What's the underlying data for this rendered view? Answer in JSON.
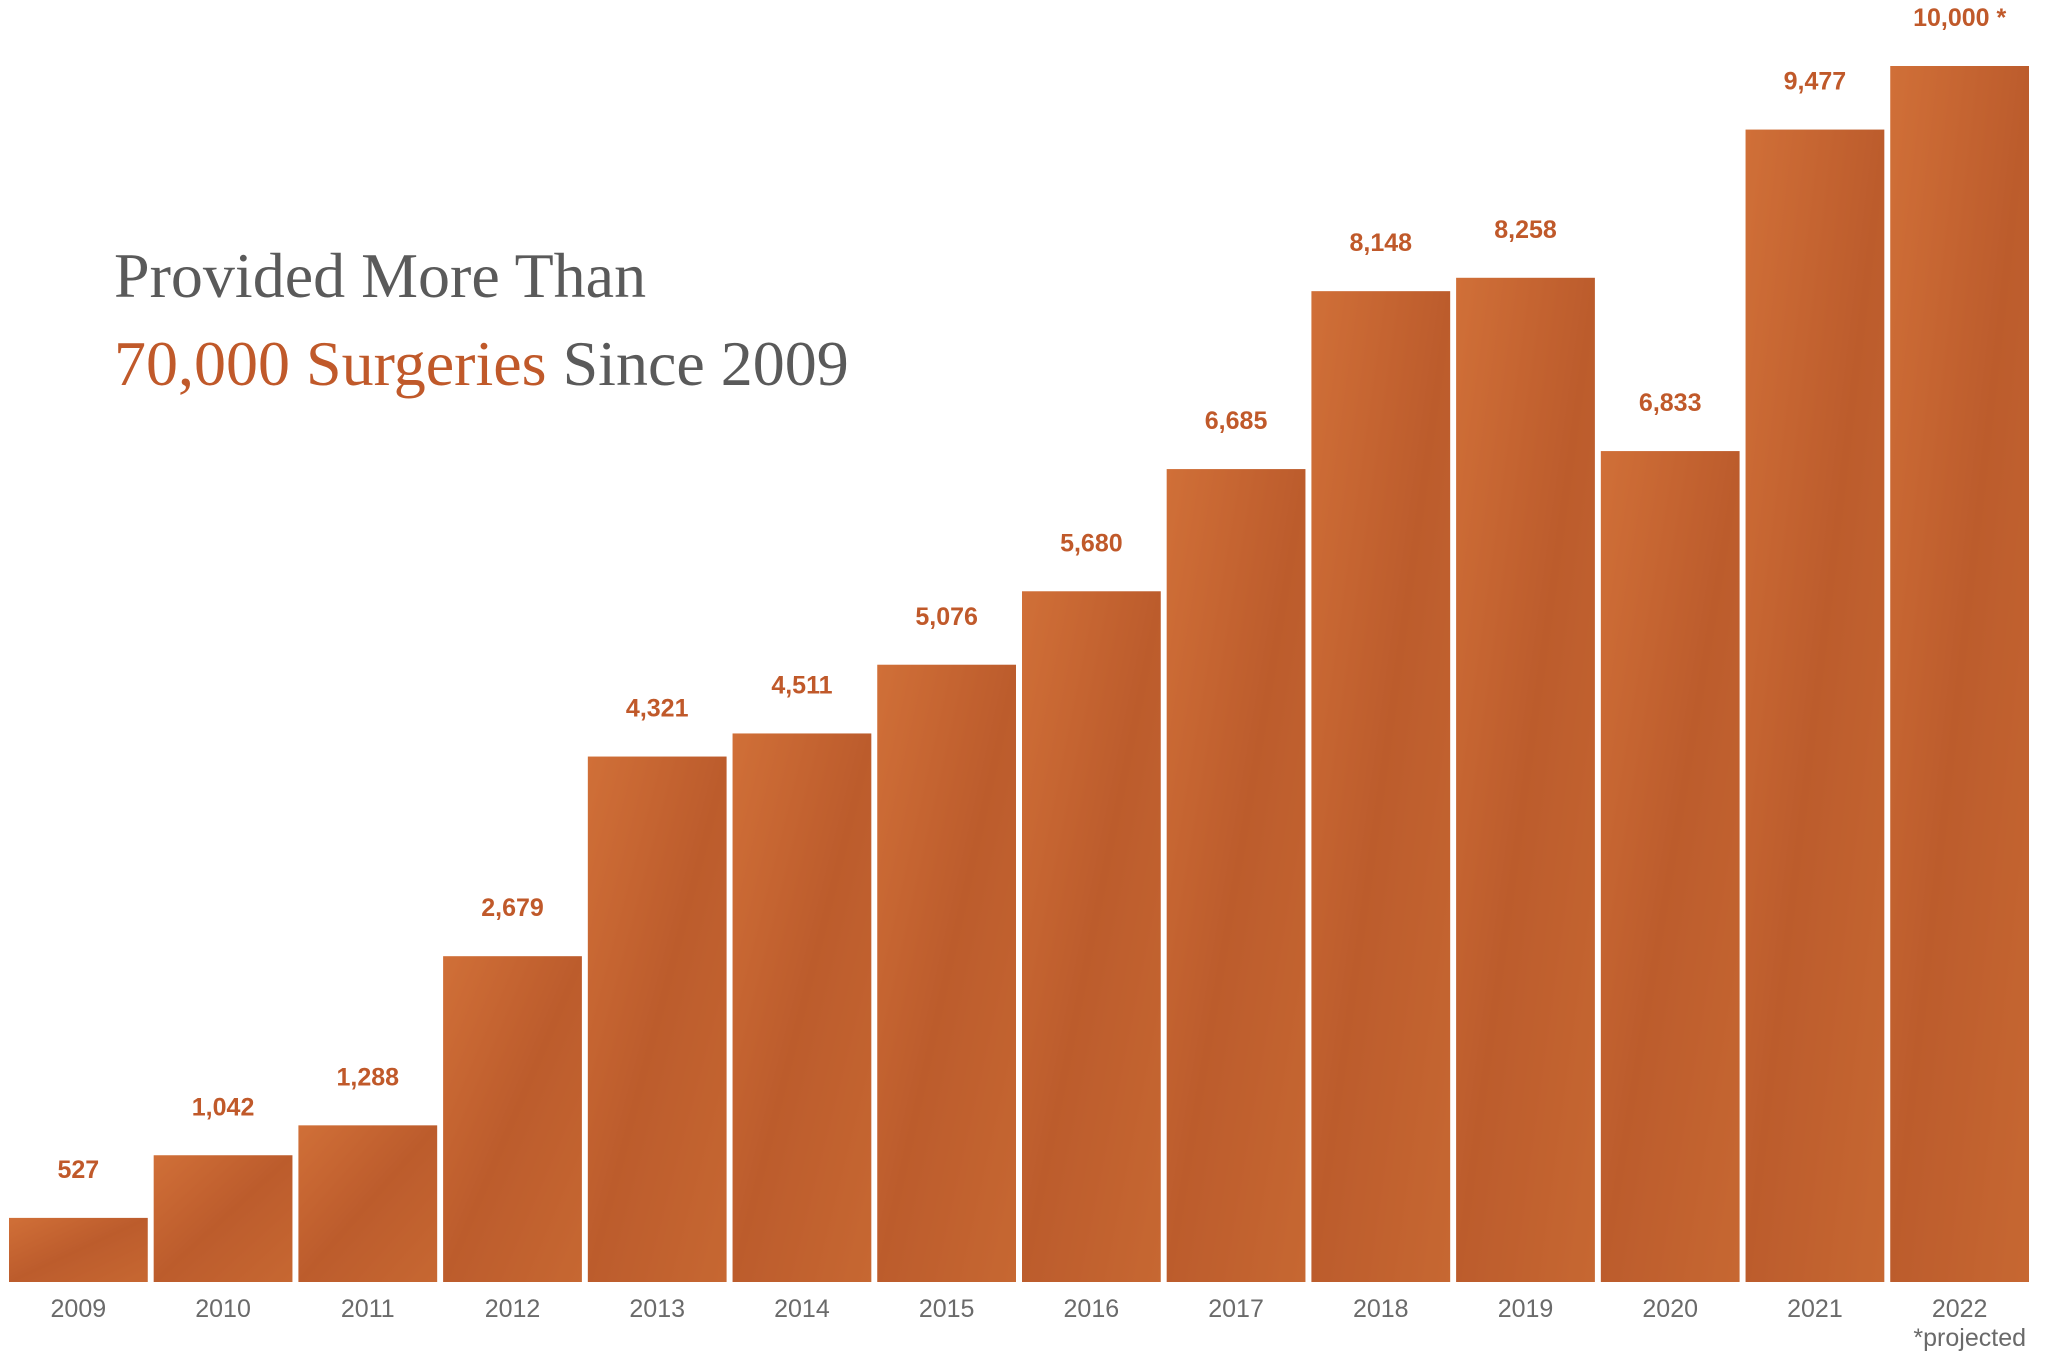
{
  "chart_data": {
    "type": "bar",
    "title": "Provided More Than",
    "subtitle_highlight": "70,000 Surgeries",
    "subtitle_rest": "Since 2009",
    "categories": [
      "2009",
      "2010",
      "2011",
      "2012",
      "2013",
      "2014",
      "2015",
      "2016",
      "2017",
      "2018",
      "2019",
      "2020",
      "2021",
      "2022"
    ],
    "values": [
      527,
      1042,
      1288,
      2679,
      4321,
      4511,
      5076,
      5680,
      6685,
      8148,
      8258,
      6833,
      9477,
      10000
    ],
    "value_labels": [
      "527",
      "1,042",
      "1,288",
      "2,679",
      "4,321",
      "4,511",
      "5,076",
      "5,680",
      "6,685",
      "8,148",
      "8,258",
      "6,833",
      "9,477",
      "10,000 *"
    ],
    "color": "#c4632f",
    "footnote": "*projected"
  }
}
